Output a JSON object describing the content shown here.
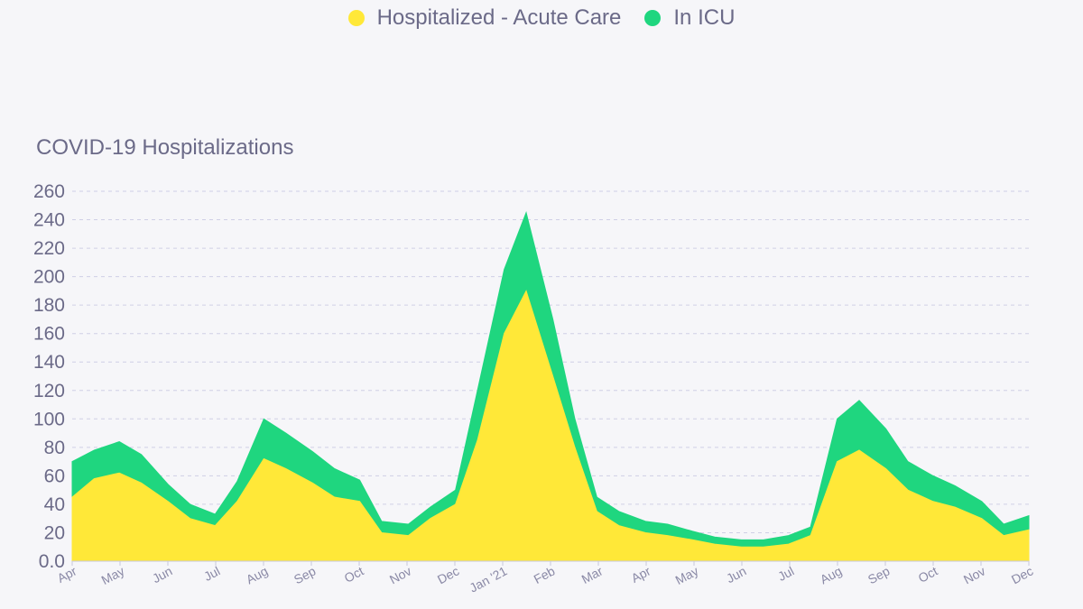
{
  "legend": [
    {
      "label": "Hospitalized - Acute Care",
      "color": "#ffe838"
    },
    {
      "label": "In ICU",
      "color": "#1fd67f"
    }
  ],
  "chart_data": {
    "type": "area",
    "stacked": true,
    "title": "COVID-19 Hospitalizations",
    "ylim": [
      0,
      260
    ],
    "yticks": [
      "0.0",
      "20",
      "40",
      "60",
      "80",
      "100",
      "120",
      "140",
      "160",
      "180",
      "200",
      "220",
      "240",
      "260"
    ],
    "xticks": [
      "Apr",
      "May",
      "Jun",
      "Jul",
      "Aug",
      "Sep",
      "Oct",
      "Nov",
      "Dec",
      "Jan '21",
      "Feb",
      "Mar",
      "Apr",
      "May",
      "Jun",
      "Jul",
      "Aug",
      "Sep",
      "Oct",
      "Nov",
      "Dec"
    ],
    "grid": true,
    "legend_position": "top",
    "x": [
      "2020-04-01",
      "2020-04-15",
      "2020-05-01",
      "2020-05-15",
      "2020-06-01",
      "2020-06-15",
      "2020-07-01",
      "2020-07-15",
      "2020-08-01",
      "2020-08-15",
      "2020-09-01",
      "2020-09-15",
      "2020-10-01",
      "2020-10-15",
      "2020-11-01",
      "2020-11-15",
      "2020-12-01",
      "2020-12-15",
      "2021-01-01",
      "2021-01-15",
      "2021-02-01",
      "2021-02-15",
      "2021-03-01",
      "2021-03-15",
      "2021-04-01",
      "2021-04-15",
      "2021-05-01",
      "2021-05-15",
      "2021-06-01",
      "2021-06-15",
      "2021-07-01",
      "2021-07-15",
      "2021-08-01",
      "2021-08-15",
      "2021-09-01",
      "2021-09-15",
      "2021-10-01",
      "2021-10-15",
      "2021-11-01",
      "2021-11-15",
      "2021-12-01"
    ],
    "series": [
      {
        "name": "Hospitalized - Acute Care",
        "color": "#ffe838",
        "values": [
          45,
          58,
          62,
          55,
          42,
          30,
          25,
          42,
          72,
          65,
          55,
          45,
          42,
          20,
          18,
          30,
          40,
          85,
          160,
          190,
          130,
          80,
          35,
          25,
          20,
          18,
          15,
          12,
          10,
          10,
          12,
          18,
          70,
          78,
          65,
          50,
          42,
          38,
          30,
          18,
          22
        ]
      },
      {
        "name": "In ICU",
        "color": "#1fd67f",
        "values": [
          25,
          20,
          22,
          20,
          12,
          10,
          8,
          14,
          28,
          25,
          22,
          20,
          15,
          8,
          8,
          8,
          10,
          35,
          45,
          55,
          40,
          20,
          10,
          10,
          8,
          8,
          6,
          5,
          5,
          5,
          6,
          6,
          30,
          35,
          28,
          20,
          18,
          15,
          12,
          8,
          10
        ]
      }
    ]
  }
}
